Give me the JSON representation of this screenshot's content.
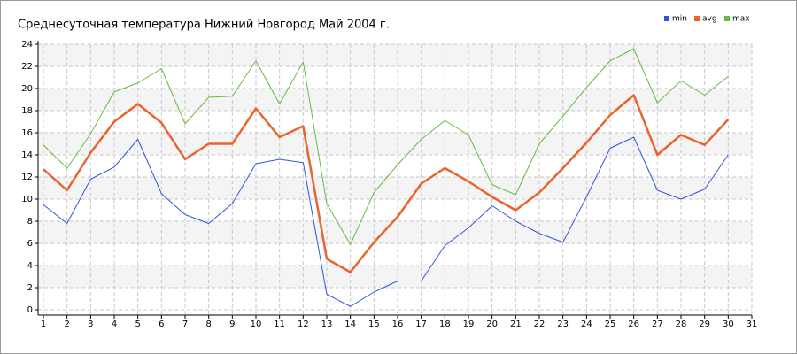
{
  "chart_data": {
    "type": "line",
    "title": "Среднесуточная температура Нижний Новгород  Май 2004 г.",
    "x": [
      1,
      2,
      3,
      4,
      5,
      6,
      7,
      8,
      9,
      10,
      11,
      12,
      13,
      14,
      15,
      16,
      17,
      18,
      19,
      20,
      21,
      22,
      23,
      24,
      25,
      26,
      27,
      28,
      29,
      30
    ],
    "series": [
      {
        "name": "min",
        "color": "#3355dd",
        "width": 1,
        "values": [
          9.5,
          7.8,
          11.8,
          12.9,
          15.4,
          10.5,
          8.6,
          7.8,
          9.6,
          13.2,
          13.6,
          13.3,
          1.4,
          0.3,
          1.6,
          2.6,
          2.6,
          5.8,
          7.4,
          9.4,
          8.0,
          6.9,
          6.1,
          10.2,
          14.6,
          15.6,
          10.8,
          10.0,
          10.9,
          14.0
        ]
      },
      {
        "name": "avg",
        "color": "#e8642c",
        "width": 2.5,
        "values": [
          12.7,
          10.8,
          14.2,
          17.0,
          18.6,
          16.9,
          13.6,
          15.0,
          15.0,
          18.2,
          15.6,
          16.6,
          4.6,
          3.4,
          6.1,
          8.4,
          11.4,
          12.8,
          11.6,
          10.2,
          9.0,
          10.6,
          12.8,
          15.1,
          17.6,
          19.4,
          14.0,
          15.8,
          14.9,
          17.2
        ]
      },
      {
        "name": "max",
        "color": "#66bb44",
        "width": 1,
        "values": [
          14.9,
          12.8,
          15.9,
          19.7,
          20.5,
          21.8,
          16.8,
          19.2,
          19.3,
          22.5,
          18.6,
          22.4,
          9.6,
          5.9,
          10.6,
          13.1,
          15.4,
          17.1,
          15.8,
          11.3,
          10.4,
          15.0,
          17.5,
          20.1,
          22.5,
          23.6,
          18.7,
          20.7,
          19.4,
          21.1
        ]
      }
    ],
    "xlim": [
      1,
      31
    ],
    "xticks": [
      1,
      2,
      3,
      4,
      5,
      6,
      7,
      8,
      9,
      10,
      11,
      12,
      13,
      14,
      15,
      16,
      17,
      18,
      19,
      20,
      21,
      22,
      23,
      24,
      25,
      26,
      27,
      28,
      29,
      30,
      31
    ],
    "ylim": [
      0,
      24
    ],
    "yticks": [
      0,
      2,
      4,
      6,
      8,
      10,
      12,
      14,
      16,
      18,
      20,
      22,
      24
    ],
    "grid": true,
    "legend": "top-right"
  }
}
